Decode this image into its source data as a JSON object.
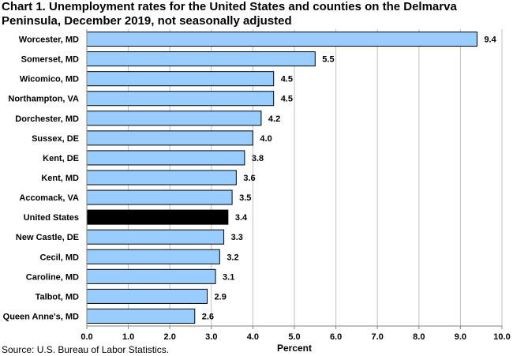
{
  "chart_data": {
    "type": "bar",
    "orientation": "horizontal",
    "title": "Chart 1. Unemployment rates for the United States and counties on the Delmarva Peninsula, December 2019, not seasonally adjusted",
    "source": "Source: U.S. Bureau of Labor Statistics.",
    "xlabel": "Percent",
    "ylabel": "",
    "xlim": [
      0,
      10
    ],
    "xticks": [
      "0.0",
      "1.0",
      "2.0",
      "3.0",
      "4.0",
      "5.0",
      "6.0",
      "7.0",
      "8.0",
      "9.0",
      "10.0"
    ],
    "grid": true,
    "categories": [
      "Worcester, MD",
      "Somerset, MD",
      "Wicomico, MD",
      "Northampton, VA",
      "Dorchester, MD",
      "Sussex, DE",
      "Kent, DE",
      "Kent, MD",
      "Accomack, VA",
      "United States",
      "New Castle, DE",
      "Cecil, MD",
      "Caroline, MD",
      "Talbot, MD",
      "Queen Anne's, MD"
    ],
    "values": [
      9.4,
      5.5,
      4.5,
      4.5,
      4.2,
      4.0,
      3.8,
      3.6,
      3.5,
      3.4,
      3.3,
      3.2,
      3.1,
      2.9,
      2.6
    ],
    "value_labels": [
      "9.4",
      "5.5",
      "4.5",
      "4.5",
      "4.2",
      "4.0",
      "3.8",
      "3.6",
      "3.5",
      "3.4",
      "3.3",
      "3.2",
      "3.1",
      "2.9",
      "2.6"
    ],
    "highlight": "United States",
    "colors": {
      "bar": "#99ccff",
      "highlight": "#000000",
      "grid": "#c0c0c0",
      "axis": "#808080"
    }
  }
}
